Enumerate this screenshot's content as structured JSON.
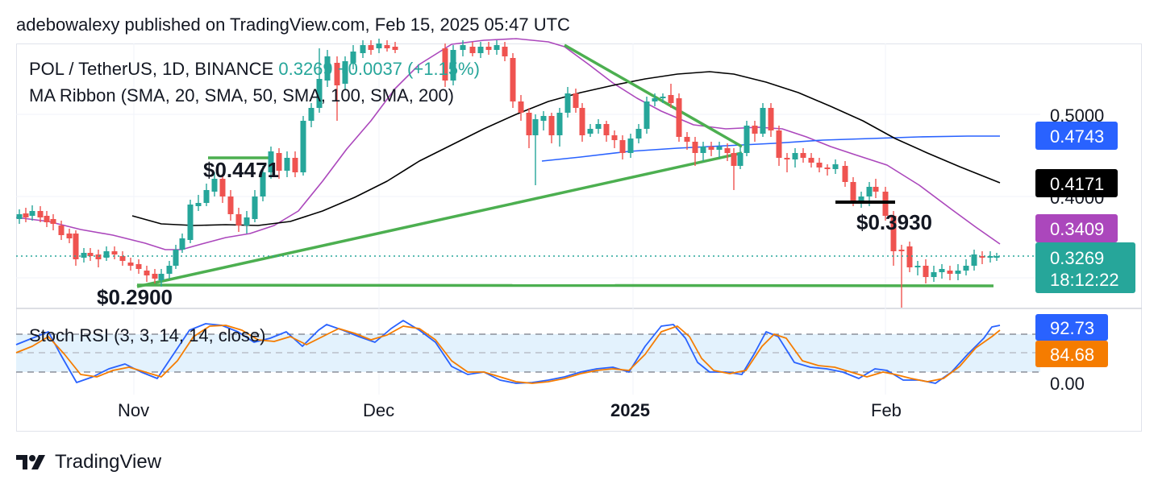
{
  "header": {
    "text": "adebowalexy published on TradingView.com, Feb 15, 2025 05:47 UTC"
  },
  "legend": {
    "symbol": "POL / TetherUS, 1D, BINANCE",
    "price": "0.3269",
    "change": "+0.0037 (+1.15%)",
    "ma_ribbon": "MA Ribbon (SMA, 20, SMA, 50, SMA, 100, SMA, 200)",
    "stoch": "Stoch RSI (3, 3, 14, 14, close)"
  },
  "annotations": {
    "high": "$0.4471",
    "low": "$0.2900",
    "support": "$0.3930"
  },
  "footer": {
    "brand": "TradingView"
  },
  "colors": {
    "up": "#26a69a",
    "down": "#ef5350",
    "trend": "#4caf50",
    "sma20": "#ab47bc",
    "sma50": "#2962ff",
    "sma100": "#000000",
    "k": "#2962ff",
    "d": "#f57c00",
    "band": "#e3f2fd"
  },
  "chart_data": [
    {
      "type": "candlestick",
      "title": "POL / TetherUS, 1D, BINANCE",
      "x_ticks": [
        "Nov",
        "Dec",
        "2025",
        "Feb"
      ],
      "y_ticks": [
        0.5,
        0.4
      ],
      "ylim": [
        0.27,
        0.5
      ],
      "price_badges": [
        {
          "value": "0.4743",
          "color": "#2962ff",
          "label": "SMA 50"
        },
        {
          "value": "0.4171",
          "color": "#000000",
          "label": "SMA 100"
        },
        {
          "value": "0.3409",
          "color": "#ab47bc",
          "label": "SMA 20"
        },
        {
          "value": "0.3269",
          "color": "#26a69a",
          "label": "last price",
          "countdown": "18:12:22"
        }
      ],
      "series": [
        {
          "name": "SMA 20",
          "color": "#ab47bc"
        },
        {
          "name": "SMA 50",
          "color": "#2962ff"
        },
        {
          "name": "SMA 100",
          "color": "#000000"
        }
      ],
      "last_close": 0.3269
    },
    {
      "type": "line",
      "title": "Stoch RSI (3, 3, 14, 14, close)",
      "y_ticks": [
        0.0
      ],
      "ylim": [
        0,
        100
      ],
      "bands": [
        80,
        20
      ],
      "series": [
        {
          "name": "K",
          "color": "#2962ff",
          "last": 92.73
        },
        {
          "name": "D",
          "color": "#f57c00",
          "last": 84.68
        }
      ]
    }
  ]
}
